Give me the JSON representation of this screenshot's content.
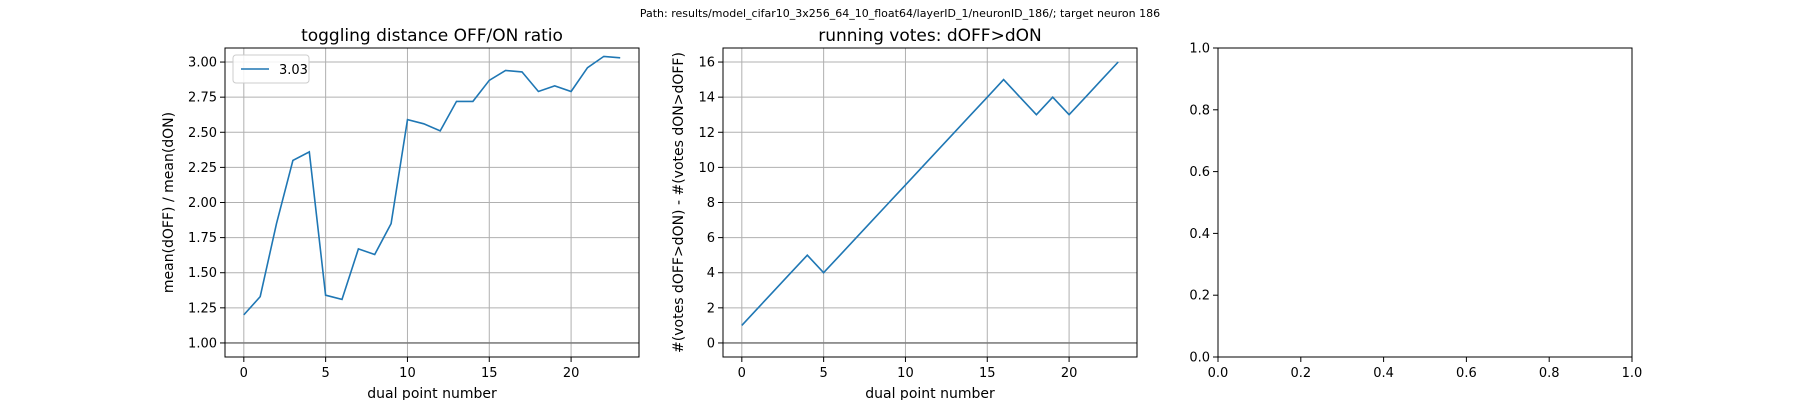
{
  "figure": {
    "suptitle": "Path: results/model_cifar10_3x256_64_10_float64/layerID_1/neuronID_186/; target neuron 186"
  },
  "colors": {
    "series": "#1f77b4",
    "grid": "#b0b0b0",
    "refline": "#808080"
  },
  "chart_data": [
    {
      "type": "line",
      "title": "toggling distance OFF/ON ratio",
      "xlabel": "dual point number",
      "ylabel": "mean(dOFF) / mean(dON)",
      "xlim": [
        -1.15,
        24.15
      ],
      "ylim": [
        0.9,
        3.1
      ],
      "xticks": [
        0,
        5,
        10,
        15,
        20
      ],
      "yticks": [
        1.0,
        1.25,
        1.5,
        1.75,
        2.0,
        2.25,
        2.5,
        2.75,
        3.0
      ],
      "ytick_labels": [
        "1.00",
        "1.25",
        "1.50",
        "1.75",
        "2.00",
        "2.25",
        "2.50",
        "2.75",
        "3.00"
      ],
      "grid": true,
      "legend": "upper-left",
      "reference_line": 1.0,
      "series": [
        {
          "name": "3.03",
          "x": [
            0,
            1,
            2,
            3,
            4,
            5,
            6,
            7,
            8,
            9,
            10,
            11,
            12,
            13,
            14,
            15,
            16,
            17,
            18,
            19,
            20,
            21,
            22,
            23
          ],
          "y": [
            1.2,
            1.33,
            1.85,
            2.3,
            2.36,
            1.34,
            1.31,
            1.67,
            1.63,
            1.85,
            2.59,
            2.56,
            2.51,
            2.72,
            2.72,
            2.87,
            2.94,
            2.93,
            2.79,
            2.83,
            2.79,
            2.96,
            3.04,
            3.03
          ]
        }
      ]
    },
    {
      "type": "line",
      "title": "running votes: dOFF>dON",
      "xlabel": "dual point number",
      "ylabel": "#(votes dOFF>dON) - #(votes dON>dOFF)",
      "xlim": [
        -1.15,
        24.15
      ],
      "ylim": [
        -0.8,
        16.8
      ],
      "xticks": [
        0,
        5,
        10,
        15,
        20
      ],
      "yticks": [
        0,
        2,
        4,
        6,
        8,
        10,
        12,
        14,
        16
      ],
      "ytick_labels": [
        "0",
        "2",
        "4",
        "6",
        "8",
        "10",
        "12",
        "14",
        "16"
      ],
      "grid": true,
      "reference_line": 0,
      "series": [
        {
          "x": [
            0,
            1,
            2,
            3,
            4,
            5,
            6,
            7,
            8,
            9,
            10,
            11,
            12,
            13,
            14,
            15,
            16,
            17,
            18,
            19,
            20,
            21,
            22,
            23
          ],
          "y": [
            1,
            2,
            3,
            4,
            5,
            4,
            5,
            6,
            7,
            8,
            9,
            10,
            11,
            12,
            13,
            14,
            15,
            14,
            13,
            14,
            13,
            14,
            15,
            16
          ]
        }
      ]
    },
    {
      "type": "empty",
      "xlim": [
        0,
        1
      ],
      "ylim": [
        0,
        1
      ],
      "xticks": [
        0,
        0.2,
        0.4,
        0.6,
        0.8,
        1.0
      ],
      "yticks": [
        0,
        0.2,
        0.4,
        0.6,
        0.8,
        1.0
      ],
      "xtick_labels": [
        "0.0",
        "0.2",
        "0.4",
        "0.6",
        "0.8",
        "1.0"
      ],
      "ytick_labels": [
        "0.0",
        "0.2",
        "0.4",
        "0.6",
        "0.8",
        "1.0"
      ],
      "grid": false
    }
  ]
}
